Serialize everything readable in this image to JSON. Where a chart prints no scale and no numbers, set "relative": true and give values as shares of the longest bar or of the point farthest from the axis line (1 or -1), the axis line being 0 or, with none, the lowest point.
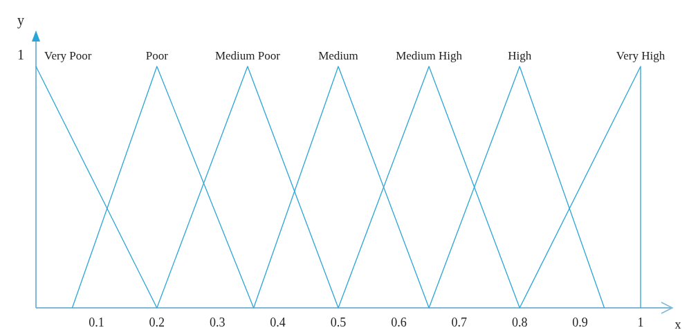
{
  "chart_data": {
    "type": "line",
    "xlabel": "x",
    "ylabel": "y",
    "xlim": [
      0,
      1
    ],
    "xticks": [
      0.1,
      0.2,
      0.3,
      0.4,
      0.5,
      0.6,
      0.7,
      0.8,
      0.9,
      1
    ],
    "relative": true,
    "annotations": [
      "1"
    ],
    "grid": false,
    "marker": "none",
    "line_style": "solid",
    "series": [
      {
        "name": "Very Poor",
        "color": "#2aa5d6",
        "x": [
          0,
          0.2
        ],
        "values": [
          1,
          0
        ]
      },
      {
        "name": "Poor",
        "color": "#2aa5d6",
        "x": [
          0.06,
          0.2,
          0.36
        ],
        "values": [
          0,
          1,
          0
        ]
      },
      {
        "name": "Medium Poor",
        "color": "#2aa5d6",
        "x": [
          0.2,
          0.35,
          0.5
        ],
        "values": [
          0,
          1,
          0
        ]
      },
      {
        "name": "Medium",
        "color": "#2aa5d6",
        "x": [
          0.36,
          0.5,
          0.65
        ],
        "values": [
          0,
          1,
          0
        ]
      },
      {
        "name": "Medium High",
        "color": "#2aa5d6",
        "x": [
          0.5,
          0.65,
          0.8
        ],
        "values": [
          0,
          1,
          0
        ]
      },
      {
        "name": "High",
        "color": "#2aa5d6",
        "x": [
          0.65,
          0.8,
          0.94
        ],
        "values": [
          0,
          1,
          0
        ]
      },
      {
        "name": "Very High",
        "color": "#2aa5d6",
        "x": [
          0.8,
          1,
          1
        ],
        "values": [
          0,
          1,
          0
        ]
      }
    ]
  }
}
